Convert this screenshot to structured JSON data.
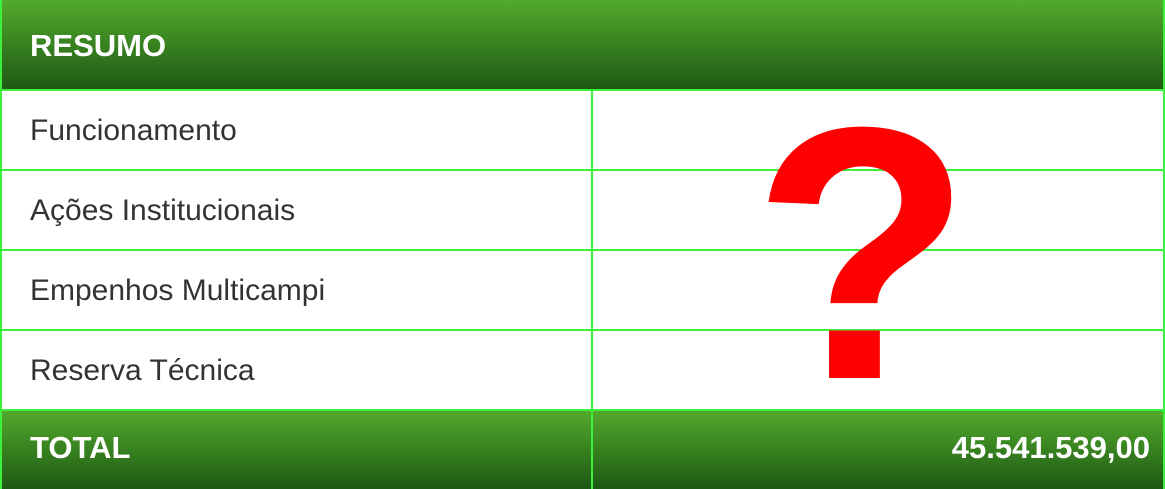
{
  "table": {
    "header": {
      "title": "RESUMO"
    },
    "rows": [
      "Funcionamento",
      "Ações Institucionais",
      "Empenhos Multicampi",
      "Reserva Técnica"
    ],
    "total": {
      "label": "TOTAL",
      "value": "45.541.539,00"
    },
    "overlay": "?"
  }
}
